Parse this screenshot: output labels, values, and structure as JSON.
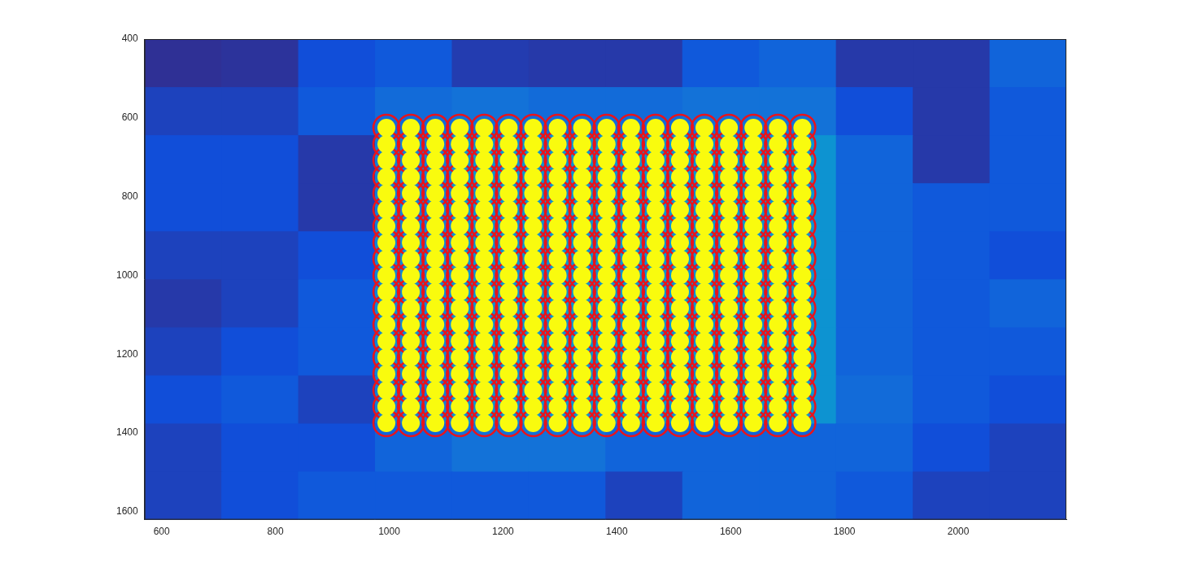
{
  "chart_data": {
    "type": "scatter",
    "xlim": [
      570,
      2190
    ],
    "ylim": [
      1620,
      400
    ],
    "xticks": [
      600,
      800,
      1000,
      1200,
      1400,
      1600,
      1800,
      2000
    ],
    "yticks": [
      400,
      600,
      800,
      1000,
      1200,
      1400,
      1600
    ],
    "grid": false,
    "spot_x": [
      995,
      1038,
      1081,
      1124,
      1167,
      1210,
      1253,
      1296,
      1339,
      1382,
      1425,
      1468,
      1511,
      1554,
      1597,
      1640,
      1683,
      1726
    ],
    "spot_y": [
      625,
      667,
      708,
      750,
      792,
      833,
      875,
      917,
      958,
      1000,
      1042,
      1083,
      1125,
      1167,
      1208,
      1250,
      1292,
      1333,
      1375
    ],
    "series": [
      {
        "marker": "dot",
        "color": "#f9fb0e"
      },
      {
        "marker": "circle",
        "color": "#e8141c"
      }
    ],
    "heatmap": {
      "x_edges": [
        570,
        705,
        840,
        975,
        1110,
        1245,
        1380,
        1515,
        1650,
        1785,
        1920,
        2055,
        2190
      ],
      "y_edges": [
        400,
        522,
        644,
        766,
        888,
        1010,
        1132,
        1254,
        1376,
        1498,
        1620
      ],
      "clim": [
        0,
        1
      ],
      "values": [
        [
          0.02,
          0.03,
          0.12,
          0.15,
          0.06,
          0.05,
          0.05,
          0.15,
          0.18,
          0.05,
          0.05,
          0.18
        ],
        [
          0.08,
          0.08,
          0.15,
          0.2,
          0.22,
          0.2,
          0.2,
          0.22,
          0.22,
          0.12,
          0.05,
          0.15
        ],
        [
          0.12,
          0.12,
          0.05,
          0.25,
          0.32,
          0.32,
          0.32,
          0.32,
          0.32,
          0.18,
          0.05,
          0.15
        ],
        [
          0.12,
          0.12,
          0.05,
          0.25,
          0.32,
          0.32,
          0.32,
          0.32,
          0.32,
          0.18,
          0.15,
          0.15
        ],
        [
          0.08,
          0.08,
          0.12,
          0.28,
          0.32,
          0.32,
          0.32,
          0.32,
          0.32,
          0.18,
          0.15,
          0.12
        ],
        [
          0.05,
          0.08,
          0.15,
          0.28,
          0.32,
          0.32,
          0.32,
          0.32,
          0.32,
          0.18,
          0.15,
          0.18
        ],
        [
          0.08,
          0.12,
          0.15,
          0.28,
          0.32,
          0.32,
          0.32,
          0.32,
          0.32,
          0.18,
          0.15,
          0.15
        ],
        [
          0.12,
          0.15,
          0.08,
          0.25,
          0.32,
          0.32,
          0.32,
          0.32,
          0.32,
          0.2,
          0.15,
          0.12
        ],
        [
          0.08,
          0.12,
          0.12,
          0.18,
          0.22,
          0.22,
          0.18,
          0.18,
          0.18,
          0.18,
          0.12,
          0.08
        ],
        [
          0.08,
          0.12,
          0.15,
          0.15,
          0.15,
          0.15,
          0.08,
          0.18,
          0.18,
          0.15,
          0.08,
          0.08
        ]
      ]
    }
  }
}
